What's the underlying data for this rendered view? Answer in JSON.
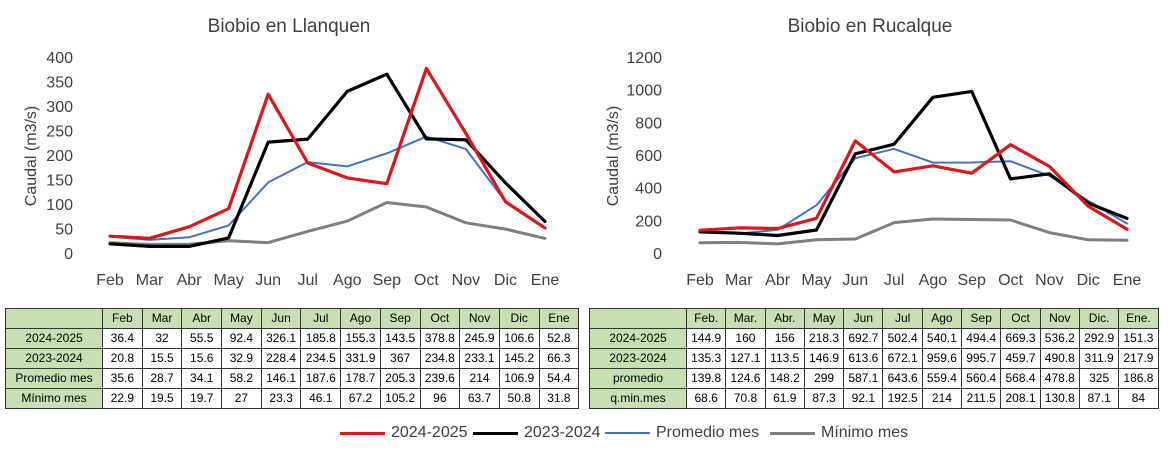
{
  "chart_data": [
    {
      "type": "line",
      "title": "Biobio en Llanquen",
      "ylabel": "Caudal (m3/s)",
      "ylim": [
        0,
        400
      ],
      "yticks": [
        0,
        50,
        100,
        150,
        200,
        250,
        300,
        350,
        400
      ],
      "categories": [
        "Feb",
        "Mar",
        "Abr",
        "May",
        "Jun",
        "Jul",
        "Ago",
        "Sep",
        "Oct",
        "Nov",
        "Dic",
        "Ene"
      ],
      "series": [
        {
          "name": "2024-2025",
          "color": "#e0151a",
          "values": [
            36.4,
            32,
            55.5,
            92.4,
            326.1,
            185.8,
            155.3,
            143.5,
            378.8,
            245.9,
            106.6,
            52.8
          ]
        },
        {
          "name": "2023-2024",
          "color": "#000000",
          "values": [
            20.8,
            15.5,
            15.6,
            32.9,
            228.4,
            234.5,
            331.9,
            367,
            234.8,
            233.1,
            145.2,
            66.3
          ]
        },
        {
          "name": "Promedio mes",
          "color": "#4472c4",
          "values": [
            35.6,
            28.7,
            34.1,
            58.2,
            146.1,
            187.6,
            178.7,
            205.3,
            239.6,
            214,
            106.9,
            54.4
          ]
        },
        {
          "name": "Mínimo mes",
          "color": "#7f7f7f",
          "values": [
            22.9,
            19.5,
            19.7,
            27,
            23.3,
            46.1,
            67.2,
            105.2,
            96,
            63.7,
            50.8,
            31.8
          ]
        }
      ],
      "table": {
        "header": [
          "Feb",
          "Mar",
          "Abr",
          "May",
          "Jun",
          "Jul",
          "Ago",
          "Sep",
          "Oct",
          "Nov",
          "Dic",
          "Ene"
        ],
        "rows": [
          {
            "label": "2024-2025",
            "cells": [
              "36.4",
              "32",
              "55.5",
              "92.4",
              "326.1",
              "185.8",
              "155.3",
              "143.5",
              "378.8",
              "245.9",
              "106.6",
              "52.8"
            ]
          },
          {
            "label": "2023-2024",
            "cells": [
              "20.8",
              "15.5",
              "15.6",
              "32.9",
              "228.4",
              "234.5",
              "331.9",
              "367",
              "234.8",
              "233.1",
              "145.2",
              "66.3"
            ]
          },
          {
            "label": "Promedio mes",
            "cells": [
              "35.6",
              "28.7",
              "34.1",
              "58.2",
              "146.1",
              "187.6",
              "178.7",
              "205.3",
              "239.6",
              "214",
              "106.9",
              "54.4"
            ]
          },
          {
            "label": "Mínimo mes",
            "cells": [
              "22.9",
              "19.5",
              "19.7",
              "27",
              "23.3",
              "46.1",
              "67.2",
              "105.2",
              "96",
              "63.7",
              "50.8",
              "31.8"
            ]
          }
        ]
      }
    },
    {
      "type": "line",
      "title": "Biobio en Rucalque",
      "ylabel": "Caudal (m3/s)",
      "ylim": [
        0,
        1200
      ],
      "yticks": [
        0,
        200,
        400,
        600,
        800,
        1000,
        1200
      ],
      "categories": [
        "Feb",
        "Mar",
        "Abr",
        "May",
        "Jun",
        "Jul",
        "Ago",
        "Sep",
        "Oct",
        "Nov",
        "Dic",
        "Ene"
      ],
      "series": [
        {
          "name": "2024-2025",
          "color": "#e0151a",
          "values": [
            144.9,
            160,
            156,
            218.3,
            692.7,
            502.4,
            540.1,
            494.4,
            669.3,
            536.2,
            292.9,
            151.3
          ]
        },
        {
          "name": "2023-2024",
          "color": "#000000",
          "values": [
            135.3,
            127.1,
            113.5,
            146.9,
            613.6,
            672.1,
            959.6,
            995.7,
            459.7,
            490.8,
            311.9,
            217.9
          ]
        },
        {
          "name": "Promedio mes",
          "color": "#4472c4",
          "values": [
            139.8,
            124.6,
            148.2,
            299,
            587.1,
            643.6,
            559.4,
            560.4,
            568.4,
            478.8,
            325,
            186.8
          ]
        },
        {
          "name": "Mínimo mes",
          "color": "#7f7f7f",
          "values": [
            68.6,
            70.8,
            61.9,
            87.3,
            92.1,
            192.5,
            214,
            211.5,
            208.1,
            130.8,
            87.1,
            84
          ]
        }
      ],
      "table": {
        "header": [
          "Feb.",
          "Mar.",
          "Abr.",
          "May",
          "Jun",
          "Jul",
          "Ago",
          "Sep",
          "Oct",
          "Nov",
          "Dic.",
          "Ene."
        ],
        "rows": [
          {
            "label": "2024-2025",
            "cells": [
              "144.9",
              "160",
              "156",
              "218.3",
              "692.7",
              "502.4",
              "540.1",
              "494.4",
              "669.3",
              "536.2",
              "292.9",
              "151.3"
            ]
          },
          {
            "label": "2023-2024",
            "cells": [
              "135.3",
              "127.1",
              "113.5",
              "146.9",
              "613.6",
              "672.1",
              "959.6",
              "995.7",
              "459.7",
              "490.8",
              "311.9",
              "217.9"
            ]
          },
          {
            "label": "promedio",
            "cells": [
              "139.8",
              "124.6",
              "148.2",
              "299",
              "587.1",
              "643.6",
              "559.4",
              "560.4",
              "568.4",
              "478.8",
              "325",
              "186.8"
            ]
          },
          {
            "label": "q.min.mes",
            "cells": [
              "68.6",
              "70.8",
              "61.9",
              "87.3",
              "92.1",
              "192.5",
              "214",
              "211.5",
              "208.1",
              "130.8",
              "87.1",
              "84"
            ]
          }
        ]
      }
    }
  ],
  "legend": [
    {
      "label": "2024-2025",
      "color": "#e0151a"
    },
    {
      "label": "2023-2024",
      "color": "#000000"
    },
    {
      "label": "Promedio mes",
      "color": "#4472c4"
    },
    {
      "label": "Mínimo mes",
      "color": "#7f7f7f"
    }
  ]
}
